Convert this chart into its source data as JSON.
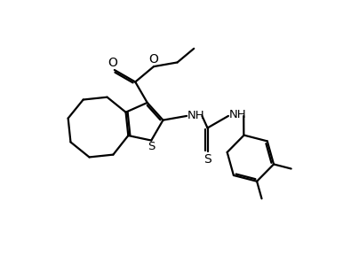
{
  "bg_color": "#ffffff",
  "line_color": "#000000",
  "lw": 1.6,
  "fig_width": 3.86,
  "fig_height": 3.06,
  "dpi": 100,
  "xlim": [
    0,
    10
  ],
  "ylim": [
    0,
    8
  ]
}
